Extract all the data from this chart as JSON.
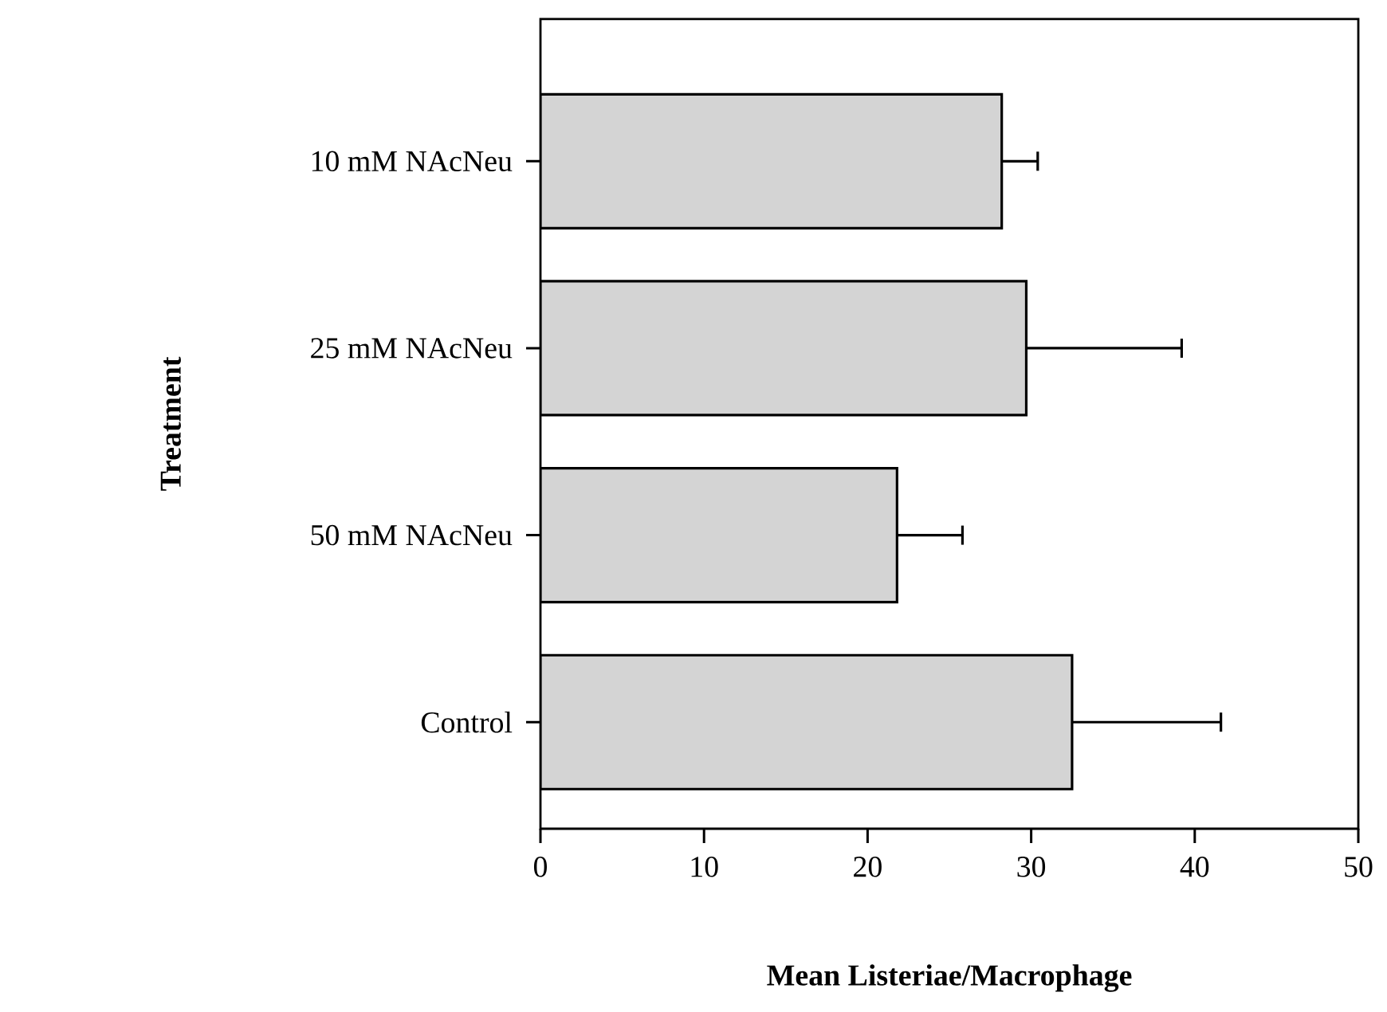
{
  "chart_data": {
    "type": "bar",
    "orientation": "horizontal",
    "xlabel": "Mean Listeriae/Macrophage",
    "ylabel": "Treatment",
    "categories": [
      "10 mM NAcNeu",
      "25 mM NAcNeu",
      "50 mM NAcNeu",
      "Control"
    ],
    "values": [
      28.2,
      29.7,
      21.8,
      32.5
    ],
    "errors": [
      [
        28.2,
        30.4
      ],
      [
        29.7,
        39.2
      ],
      [
        21.8,
        25.8
      ],
      [
        32.5,
        41.6
      ]
    ],
    "color": "#d4d4d4",
    "xlim": [
      0,
      50
    ],
    "xticks": [
      0,
      10,
      20,
      30,
      40,
      50
    ],
    "grid": false
  }
}
